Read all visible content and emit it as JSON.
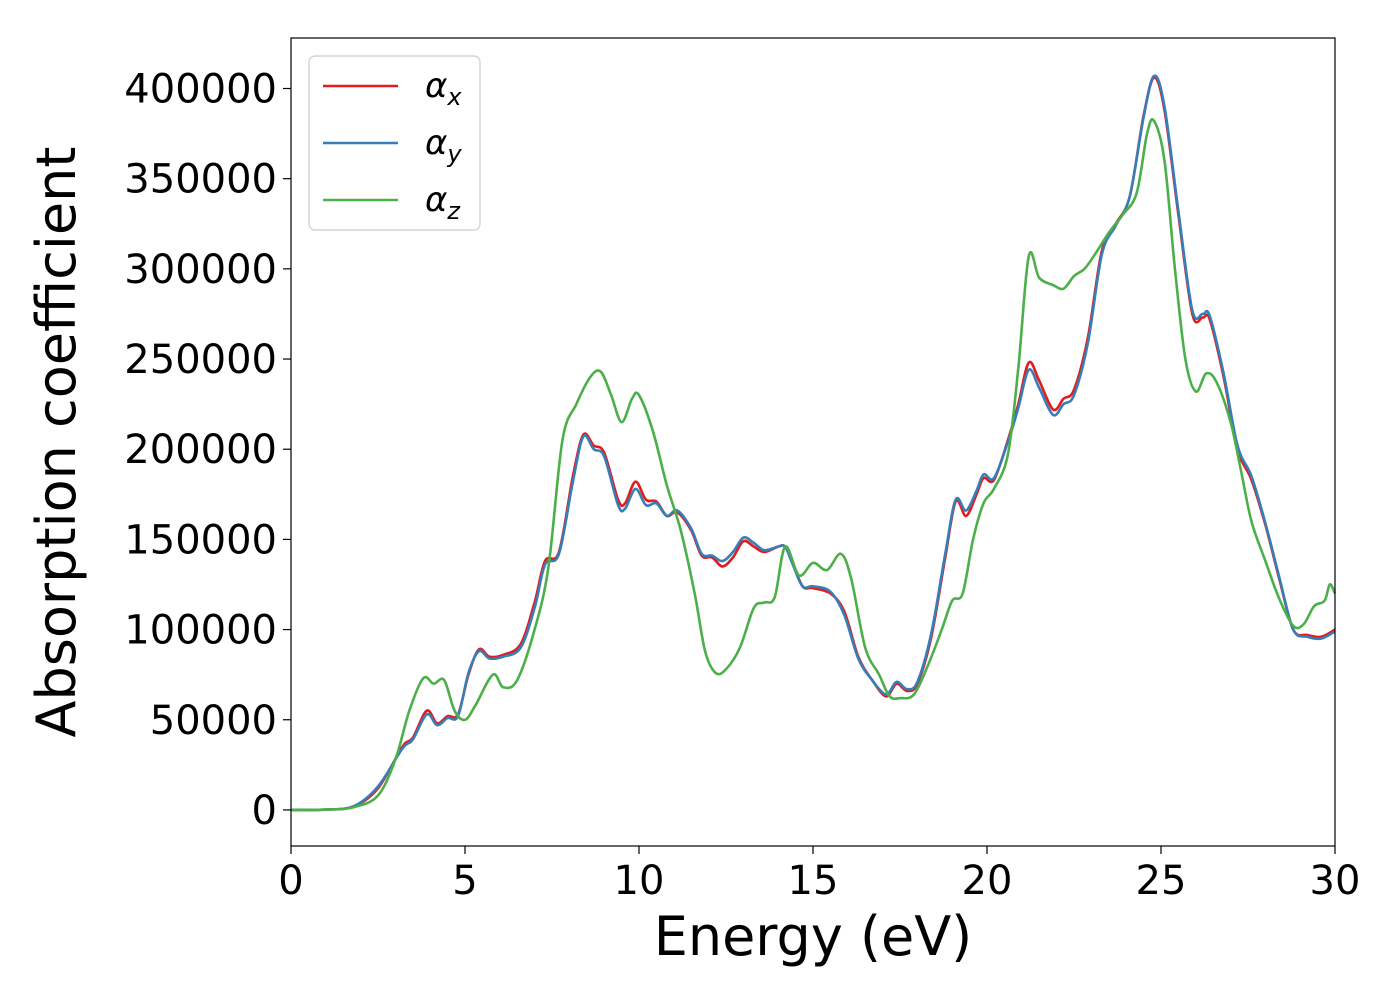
{
  "chart_data": {
    "type": "line",
    "title": "",
    "xlabel": "Energy (eV)",
    "ylabel": "Absorption coefficient",
    "xlim": [
      0,
      30
    ],
    "ylim": [
      -20000,
      428000
    ],
    "xticks": [
      0,
      5,
      10,
      15,
      20,
      25,
      30
    ],
    "yticks": [
      0,
      50000,
      100000,
      150000,
      200000,
      250000,
      300000,
      350000,
      400000
    ],
    "grid": false,
    "legend_position": "top-left",
    "series": [
      {
        "name": "αx",
        "symbol": "α",
        "subscript": "x",
        "color": "#e41a1c",
        "points": [
          [
            0,
            0
          ],
          [
            1,
            200
          ],
          [
            1.8,
            2000
          ],
          [
            2.5,
            12000
          ],
          [
            3.2,
            35000
          ],
          [
            3.5,
            40000
          ],
          [
            3.9,
            55000
          ],
          [
            4.2,
            48000
          ],
          [
            4.5,
            52000
          ],
          [
            4.8,
            53000
          ],
          [
            5.1,
            75000
          ],
          [
            5.4,
            89000
          ],
          [
            5.7,
            85000
          ],
          [
            6.1,
            86000
          ],
          [
            6.6,
            92000
          ],
          [
            7.0,
            115000
          ],
          [
            7.3,
            138000
          ],
          [
            7.7,
            143000
          ],
          [
            8.1,
            185000
          ],
          [
            8.4,
            208000
          ],
          [
            8.7,
            202000
          ],
          [
            9.0,
            198000
          ],
          [
            9.4,
            172000
          ],
          [
            9.6,
            170000
          ],
          [
            9.9,
            182000
          ],
          [
            10.2,
            172000
          ],
          [
            10.5,
            171000
          ],
          [
            10.8,
            163000
          ],
          [
            11.1,
            165000
          ],
          [
            11.5,
            155000
          ],
          [
            11.8,
            141000
          ],
          [
            12.1,
            140000
          ],
          [
            12.4,
            135000
          ],
          [
            12.7,
            140000
          ],
          [
            13.0,
            149000
          ],
          [
            13.3,
            146000
          ],
          [
            13.6,
            143000
          ],
          [
            14.0,
            146000
          ],
          [
            14.2,
            146000
          ],
          [
            14.4,
            138000
          ],
          [
            14.7,
            124000
          ],
          [
            15.0,
            123000
          ],
          [
            15.5,
            120000
          ],
          [
            15.9,
            110000
          ],
          [
            16.3,
            85000
          ],
          [
            16.7,
            72000
          ],
          [
            17.1,
            63000
          ],
          [
            17.4,
            70000
          ],
          [
            17.7,
            66000
          ],
          [
            18.0,
            70000
          ],
          [
            18.4,
            96000
          ],
          [
            18.8,
            140000
          ],
          [
            19.1,
            171000
          ],
          [
            19.4,
            163000
          ],
          [
            19.7,
            175000
          ],
          [
            19.9,
            184000
          ],
          [
            20.2,
            183000
          ],
          [
            20.6,
            205000
          ],
          [
            20.9,
            225000
          ],
          [
            21.2,
            248000
          ],
          [
            21.5,
            238000
          ],
          [
            21.9,
            222000
          ],
          [
            22.2,
            228000
          ],
          [
            22.5,
            233000
          ],
          [
            22.9,
            262000
          ],
          [
            23.3,
            310000
          ],
          [
            23.7,
            325000
          ],
          [
            24.1,
            340000
          ],
          [
            24.5,
            385000
          ],
          [
            24.8,
            406000
          ],
          [
            25.1,
            388000
          ],
          [
            25.5,
            330000
          ],
          [
            25.9,
            275000
          ],
          [
            26.2,
            273000
          ],
          [
            26.4,
            272000
          ],
          [
            26.8,
            240000
          ],
          [
            27.2,
            200000
          ],
          [
            27.6,
            183000
          ],
          [
            28.0,
            158000
          ],
          [
            28.4,
            128000
          ],
          [
            28.8,
            100000
          ],
          [
            29.2,
            97000
          ],
          [
            29.6,
            96000
          ],
          [
            30.0,
            100000
          ]
        ]
      },
      {
        "name": "αy",
        "symbol": "α",
        "subscript": "y",
        "color": "#377eb8",
        "points": [
          [
            0,
            0
          ],
          [
            1,
            200
          ],
          [
            1.8,
            2000
          ],
          [
            2.5,
            13000
          ],
          [
            3.2,
            34000
          ],
          [
            3.5,
            39000
          ],
          [
            3.9,
            53000
          ],
          [
            4.2,
            47000
          ],
          [
            4.5,
            51000
          ],
          [
            4.8,
            52000
          ],
          [
            5.1,
            76000
          ],
          [
            5.4,
            88000
          ],
          [
            5.7,
            84000
          ],
          [
            6.1,
            85000
          ],
          [
            6.6,
            90000
          ],
          [
            7.0,
            112000
          ],
          [
            7.3,
            136000
          ],
          [
            7.7,
            142000
          ],
          [
            8.1,
            182000
          ],
          [
            8.4,
            207000
          ],
          [
            8.7,
            200000
          ],
          [
            9.0,
            196000
          ],
          [
            9.4,
            169000
          ],
          [
            9.6,
            167000
          ],
          [
            9.9,
            178000
          ],
          [
            10.2,
            169000
          ],
          [
            10.5,
            170000
          ],
          [
            10.8,
            163000
          ],
          [
            11.1,
            166000
          ],
          [
            11.5,
            156000
          ],
          [
            11.8,
            142000
          ],
          [
            12.1,
            141000
          ],
          [
            12.4,
            138000
          ],
          [
            12.7,
            143000
          ],
          [
            13.0,
            151000
          ],
          [
            13.3,
            148000
          ],
          [
            13.6,
            144000
          ],
          [
            14.0,
            146000
          ],
          [
            14.2,
            146000
          ],
          [
            14.4,
            137000
          ],
          [
            14.7,
            124000
          ],
          [
            15.0,
            124000
          ],
          [
            15.5,
            121000
          ],
          [
            15.9,
            108000
          ],
          [
            16.3,
            84000
          ],
          [
            16.7,
            72000
          ],
          [
            17.1,
            64000
          ],
          [
            17.4,
            71000
          ],
          [
            17.7,
            67000
          ],
          [
            18.0,
            71000
          ],
          [
            18.4,
            98000
          ],
          [
            18.8,
            142000
          ],
          [
            19.1,
            172000
          ],
          [
            19.4,
            166000
          ],
          [
            19.7,
            177000
          ],
          [
            19.9,
            186000
          ],
          [
            20.2,
            184000
          ],
          [
            20.6,
            204000
          ],
          [
            20.9,
            223000
          ],
          [
            21.2,
            244000
          ],
          [
            21.5,
            234000
          ],
          [
            21.9,
            219000
          ],
          [
            22.2,
            225000
          ],
          [
            22.5,
            230000
          ],
          [
            22.9,
            259000
          ],
          [
            23.3,
            308000
          ],
          [
            23.7,
            324000
          ],
          [
            24.1,
            340000
          ],
          [
            24.5,
            384000
          ],
          [
            24.8,
            407000
          ],
          [
            25.1,
            390000
          ],
          [
            25.5,
            332000
          ],
          [
            25.9,
            277000
          ],
          [
            26.2,
            275000
          ],
          [
            26.4,
            274000
          ],
          [
            26.8,
            242000
          ],
          [
            27.2,
            202000
          ],
          [
            27.6,
            185000
          ],
          [
            28.0,
            159000
          ],
          [
            28.4,
            129000
          ],
          [
            28.8,
            100000
          ],
          [
            29.2,
            96000
          ],
          [
            29.6,
            95000
          ],
          [
            30.0,
            99000
          ]
        ]
      },
      {
        "name": "αz",
        "symbol": "α",
        "subscript": "z",
        "color": "#4daf4a",
        "points": [
          [
            0,
            0
          ],
          [
            1,
            200
          ],
          [
            1.8,
            1500
          ],
          [
            2.5,
            8000
          ],
          [
            3.0,
            28000
          ],
          [
            3.4,
            55000
          ],
          [
            3.8,
            73000
          ],
          [
            4.1,
            70000
          ],
          [
            4.4,
            72000
          ],
          [
            4.7,
            55000
          ],
          [
            5.0,
            50000
          ],
          [
            5.3,
            58000
          ],
          [
            5.8,
            75000
          ],
          [
            6.1,
            68000
          ],
          [
            6.5,
            72000
          ],
          [
            7.0,
            100000
          ],
          [
            7.4,
            135000
          ],
          [
            7.8,
            205000
          ],
          [
            8.2,
            225000
          ],
          [
            8.6,
            240000
          ],
          [
            8.9,
            243000
          ],
          [
            9.2,
            230000
          ],
          [
            9.5,
            215000
          ],
          [
            9.8,
            228000
          ],
          [
            10.0,
            230000
          ],
          [
            10.4,
            210000
          ],
          [
            10.8,
            180000
          ],
          [
            11.2,
            155000
          ],
          [
            11.6,
            120000
          ],
          [
            11.9,
            88000
          ],
          [
            12.2,
            76000
          ],
          [
            12.5,
            78000
          ],
          [
            12.9,
            90000
          ],
          [
            13.3,
            112000
          ],
          [
            13.6,
            115000
          ],
          [
            13.9,
            118000
          ],
          [
            14.2,
            146000
          ],
          [
            14.6,
            130000
          ],
          [
            15.0,
            137000
          ],
          [
            15.4,
            133000
          ],
          [
            15.8,
            142000
          ],
          [
            16.1,
            128000
          ],
          [
            16.5,
            90000
          ],
          [
            16.9,
            75000
          ],
          [
            17.2,
            63000
          ],
          [
            17.5,
            62000
          ],
          [
            17.9,
            64000
          ],
          [
            18.3,
            80000
          ],
          [
            18.7,
            100000
          ],
          [
            19.0,
            116000
          ],
          [
            19.3,
            120000
          ],
          [
            19.6,
            150000
          ],
          [
            19.9,
            170000
          ],
          [
            20.2,
            178000
          ],
          [
            20.6,
            197000
          ],
          [
            20.9,
            245000
          ],
          [
            21.2,
            307000
          ],
          [
            21.5,
            295000
          ],
          [
            21.9,
            291000
          ],
          [
            22.2,
            289000
          ],
          [
            22.5,
            296000
          ],
          [
            22.8,
            300000
          ],
          [
            23.1,
            308000
          ],
          [
            23.5,
            320000
          ],
          [
            23.9,
            330000
          ],
          [
            24.3,
            342000
          ],
          [
            24.6,
            375000
          ],
          [
            24.8,
            382000
          ],
          [
            25.1,
            360000
          ],
          [
            25.4,
            300000
          ],
          [
            25.7,
            250000
          ],
          [
            26.0,
            232000
          ],
          [
            26.3,
            242000
          ],
          [
            26.6,
            237000
          ],
          [
            27.0,
            215000
          ],
          [
            27.3,
            188000
          ],
          [
            27.6,
            160000
          ],
          [
            28.0,
            138000
          ],
          [
            28.4,
            117000
          ],
          [
            28.8,
            102000
          ],
          [
            29.1,
            103000
          ],
          [
            29.4,
            113000
          ],
          [
            29.7,
            116000
          ],
          [
            29.85,
            125000
          ],
          [
            30.0,
            120000
          ]
        ]
      }
    ]
  }
}
